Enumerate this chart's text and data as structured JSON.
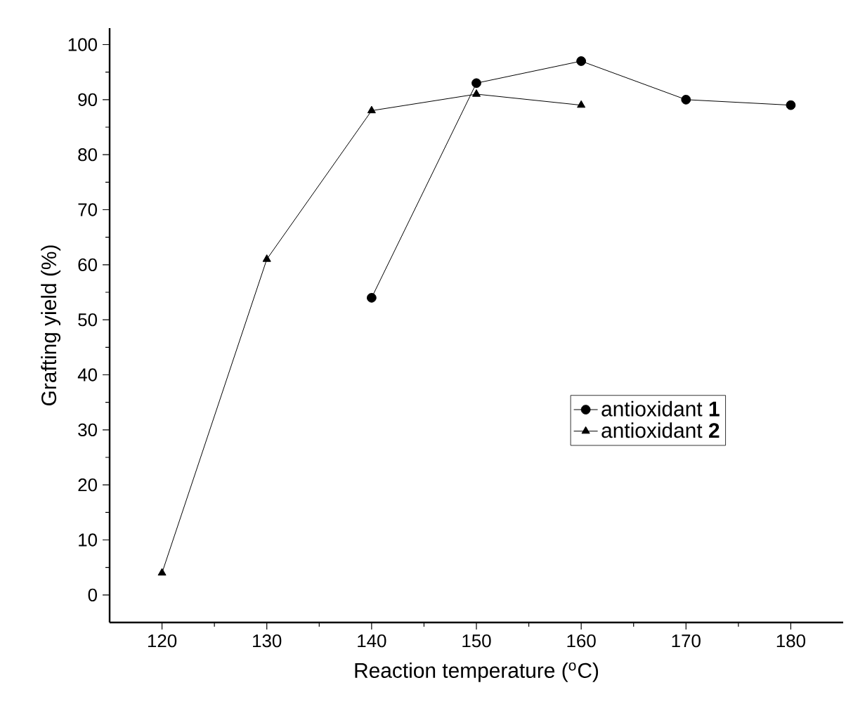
{
  "chart_data": {
    "type": "line",
    "xlabel": "Reaction temperature ($^{o}$C)",
    "ylabel": "Grafting yield (%)",
    "xlim": [
      115,
      185
    ],
    "xticks": [
      120,
      130,
      140,
      150,
      160,
      170,
      180
    ],
    "ylim": [
      -5,
      103
    ],
    "yticks": [
      0,
      10,
      20,
      30,
      40,
      50,
      60,
      70,
      80,
      90,
      100
    ],
    "legend": "center right",
    "grid": false,
    "series": [
      {
        "name": "antioxidant **1**",
        "color": "#000000",
        "marker": "circle",
        "x": [
          140,
          150,
          160,
          170,
          180
        ],
        "values": [
          54,
          93,
          97,
          90,
          89
        ]
      },
      {
        "name": "antioxidant **2**",
        "color": "#000000",
        "marker": "triangle",
        "x": [
          120,
          130,
          140,
          150,
          160
        ],
        "values": [
          4,
          61,
          88,
          91,
          89
        ]
      }
    ]
  }
}
